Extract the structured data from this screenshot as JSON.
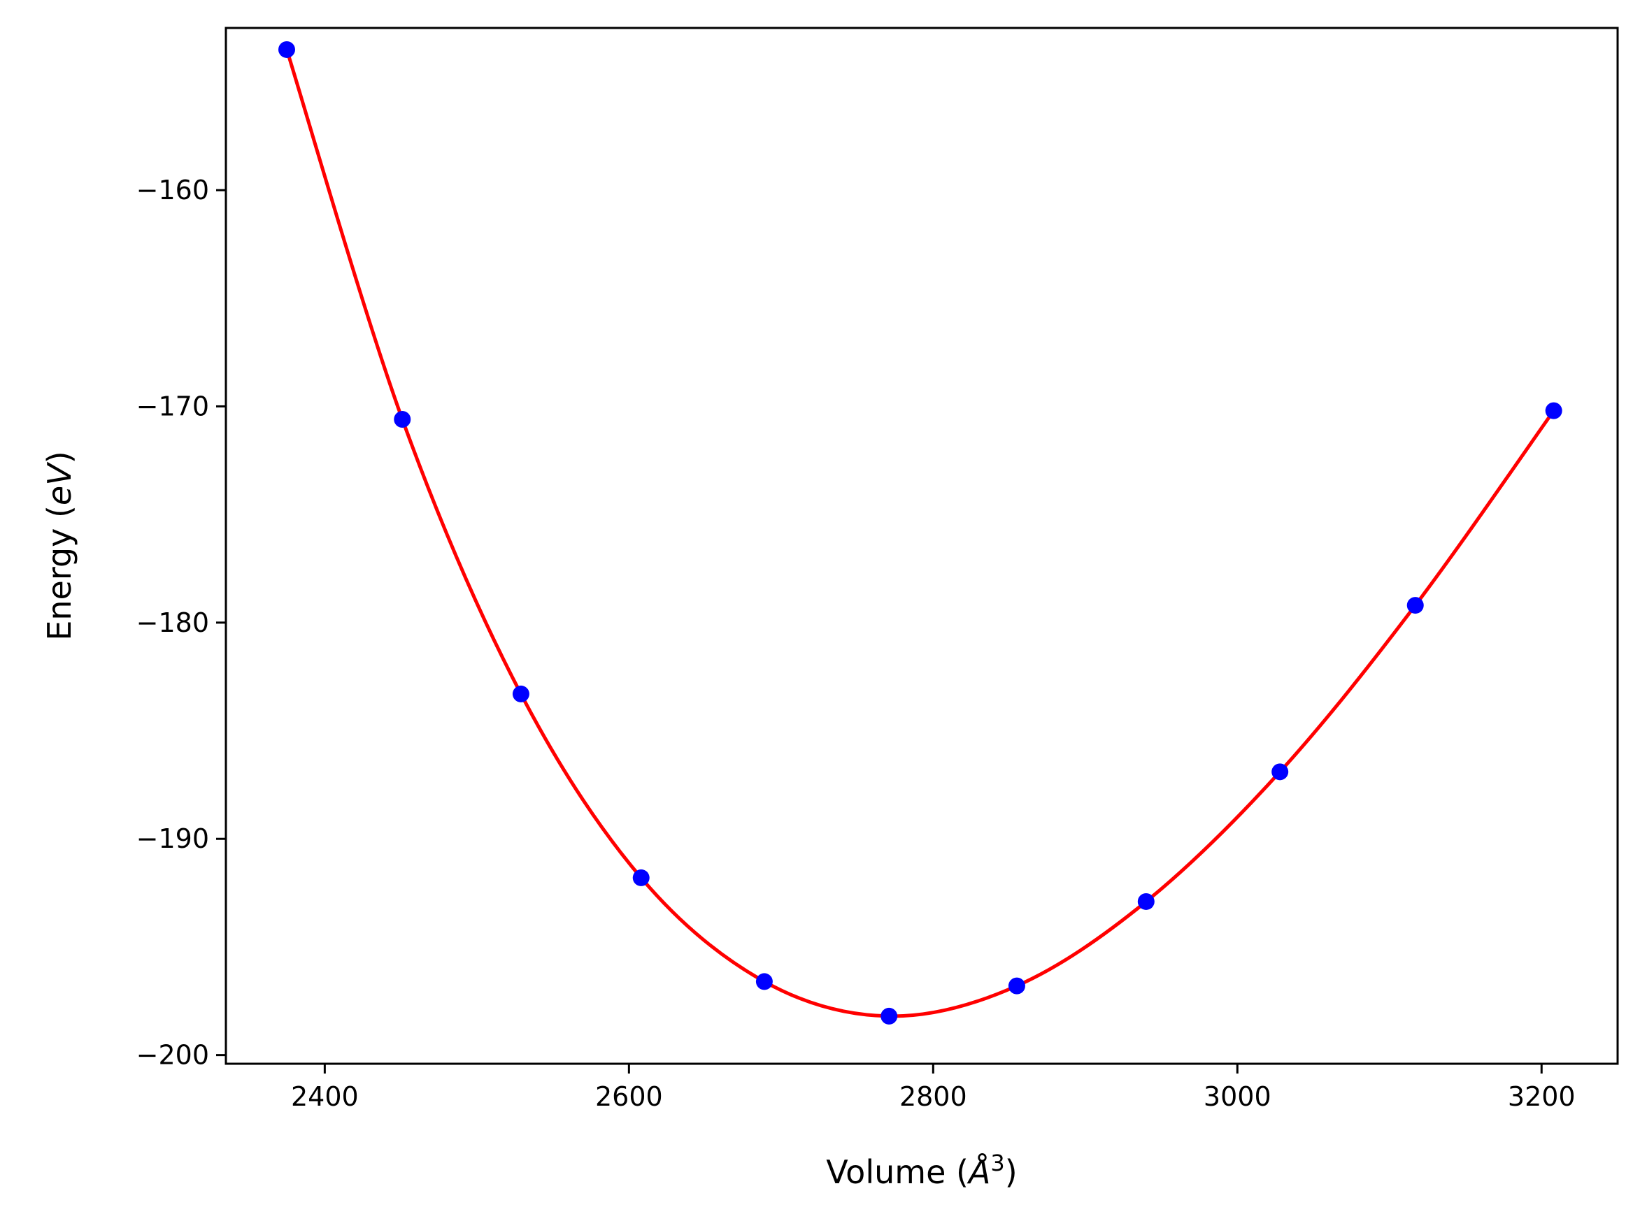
{
  "chart_data": {
    "type": "scatter",
    "xlabel": "Volume (Å³)",
    "xlabel_parts": {
      "prefix": "Volume (",
      "unit": "Å",
      "power": "3",
      "suffix": ")"
    },
    "ylabel": "Energy (eV)",
    "ylabel_parts": {
      "prefix": "Energy (",
      "unit": "eV",
      "suffix": ")"
    },
    "xlim": [
      2335,
      3250
    ],
    "ylim": [
      -200.4,
      -152.5
    ],
    "xticks": [
      2400,
      2600,
      2800,
      3000,
      3200
    ],
    "xtick_labels": [
      "2400",
      "2600",
      "2800",
      "3000",
      "3200"
    ],
    "yticks": [
      -160,
      -170,
      -180,
      -190,
      -200
    ],
    "ytick_labels": [
      "−160",
      "−170",
      "−180",
      "−190",
      "−200"
    ],
    "grid": false,
    "series": [
      {
        "kind": "points",
        "color": "#0000ff",
        "x": [
          2375,
          2451,
          2529,
          2608,
          2689,
          2771,
          2855,
          2940,
          3028,
          3117,
          3208
        ],
        "y": [
          -153.5,
          -170.6,
          -183.3,
          -191.8,
          -196.6,
          -198.2,
          -196.8,
          -192.9,
          -186.9,
          -179.2,
          -170.2
        ]
      },
      {
        "kind": "fit-curve",
        "color": "#ff0000",
        "x": [
          2375,
          2451,
          2529,
          2608,
          2689,
          2771,
          2855,
          2940,
          3028,
          3117,
          3208
        ],
        "y": [
          -153.5,
          -170.6,
          -183.3,
          -191.8,
          -196.6,
          -198.2,
          -196.8,
          -192.9,
          -186.9,
          -179.2,
          -170.2
        ]
      }
    ]
  }
}
